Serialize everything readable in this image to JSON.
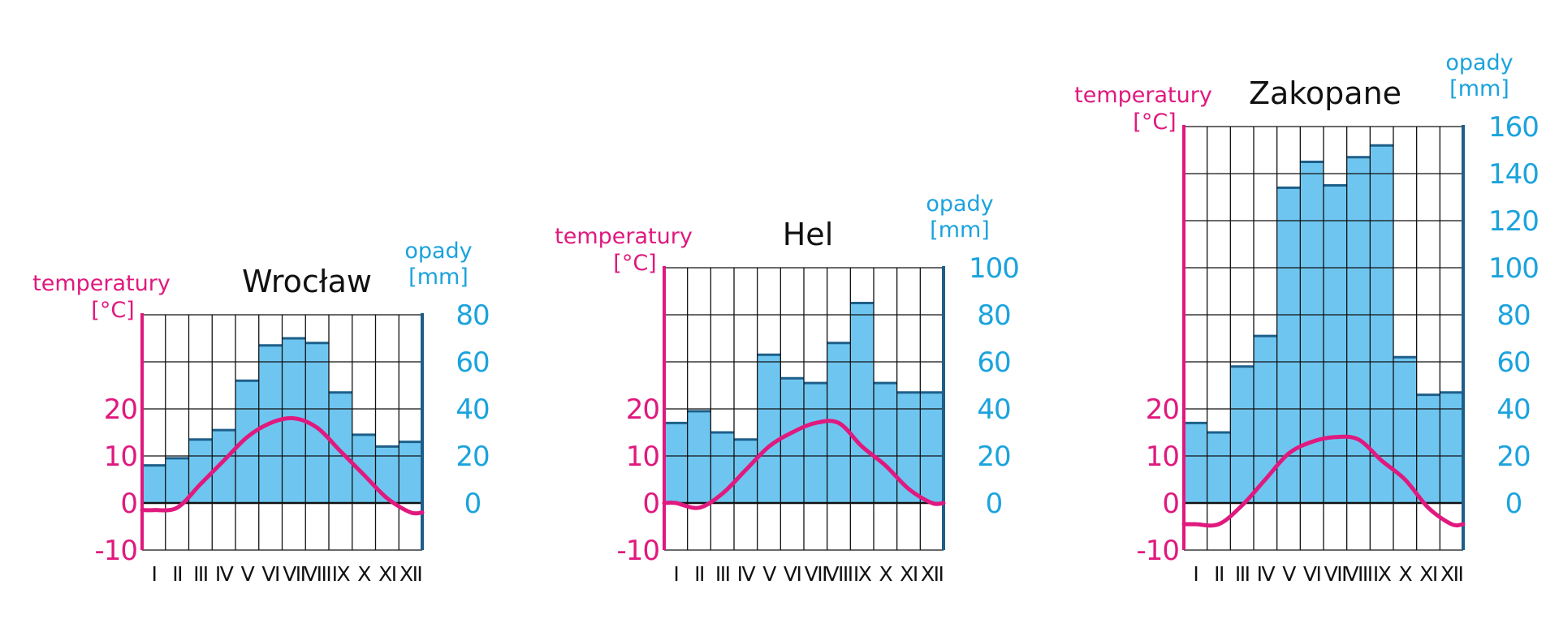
{
  "colors": {
    "temperature": "#e0197e",
    "precipitation": "#1ba3dd",
    "bar_fill": "#6ec6f0",
    "bar_top": "#1d5f8a",
    "grid": "#111111"
  },
  "months": [
    "I",
    "II",
    "III",
    "IV",
    "V",
    "VI",
    "VII",
    "VIII",
    "IX",
    "X",
    "XI",
    "XII"
  ],
  "chart_data": [
    {
      "type": "bar+line",
      "title": "Wrocław",
      "left_axis_label": [
        "temperatury",
        "[°C]"
      ],
      "right_axis_label": [
        "opady",
        "[mm]"
      ],
      "temperature_ticks": [
        -10,
        0,
        10,
        20
      ],
      "precip_ticks": [
        0,
        20,
        40,
        60,
        80
      ],
      "ylim_precip": [
        -20,
        80
      ],
      "ylim_temp": [
        -10,
        40
      ],
      "categories": [
        "I",
        "II",
        "III",
        "IV",
        "V",
        "VI",
        "VII",
        "VIII",
        "IX",
        "X",
        "XI",
        "XII"
      ],
      "series": [
        {
          "name": "opady",
          "unit": "mm",
          "values": [
            16,
            19,
            27,
            31,
            52,
            67,
            70,
            68,
            47,
            29,
            24,
            26
          ]
        },
        {
          "name": "temperatury",
          "unit": "°C",
          "values": [
            -1.5,
            -1,
            4,
            9,
            14,
            17,
            18,
            16,
            11,
            6,
            1,
            -2
          ]
        }
      ]
    },
    {
      "type": "bar+line",
      "title": "Hel",
      "left_axis_label": [
        "temperatury",
        "[°C]"
      ],
      "right_axis_label": [
        "opady",
        "[mm]"
      ],
      "temperature_ticks": [
        -10,
        0,
        10,
        20
      ],
      "precip_ticks": [
        0,
        20,
        40,
        60,
        80,
        100
      ],
      "ylim_precip": [
        -20,
        100
      ],
      "ylim_temp": [
        -10,
        50
      ],
      "categories": [
        "I",
        "II",
        "III",
        "IV",
        "V",
        "VI",
        "VII",
        "VIII",
        "IX",
        "X",
        "XI",
        "XII"
      ],
      "series": [
        {
          "name": "opady",
          "unit": "mm",
          "values": [
            34,
            39,
            30,
            27,
            63,
            53,
            51,
            68,
            85,
            51,
            47,
            47
          ]
        },
        {
          "name": "temperatury",
          "unit": "°C",
          "values": [
            0,
            -1,
            2,
            7,
            12,
            15,
            17,
            17,
            12,
            8,
            3,
            0
          ]
        }
      ]
    },
    {
      "type": "bar+line",
      "title": "Zakopane",
      "left_axis_label": [
        "temperatury",
        "[°C]"
      ],
      "right_axis_label": [
        "opady",
        "[mm]"
      ],
      "temperature_ticks": [
        -10,
        0,
        10,
        20
      ],
      "precip_ticks": [
        0,
        20,
        40,
        60,
        80,
        100,
        120,
        140,
        160
      ],
      "ylim_precip": [
        -20,
        160
      ],
      "ylim_temp": [
        -10,
        80
      ],
      "categories": [
        "I",
        "II",
        "III",
        "IV",
        "V",
        "VI",
        "VII",
        "VIII",
        "IX",
        "X",
        "XI",
        "XII"
      ],
      "series": [
        {
          "name": "opady",
          "unit": "mm",
          "values": [
            34,
            30,
            58,
            71,
            134,
            145,
            135,
            147,
            152,
            62,
            46,
            47
          ]
        },
        {
          "name": "temperatury",
          "unit": "°C",
          "values": [
            -4.5,
            -4.5,
            -0.5,
            5,
            10.5,
            13,
            14,
            13.5,
            9,
            5,
            -1,
            -4.5
          ]
        }
      ]
    }
  ]
}
